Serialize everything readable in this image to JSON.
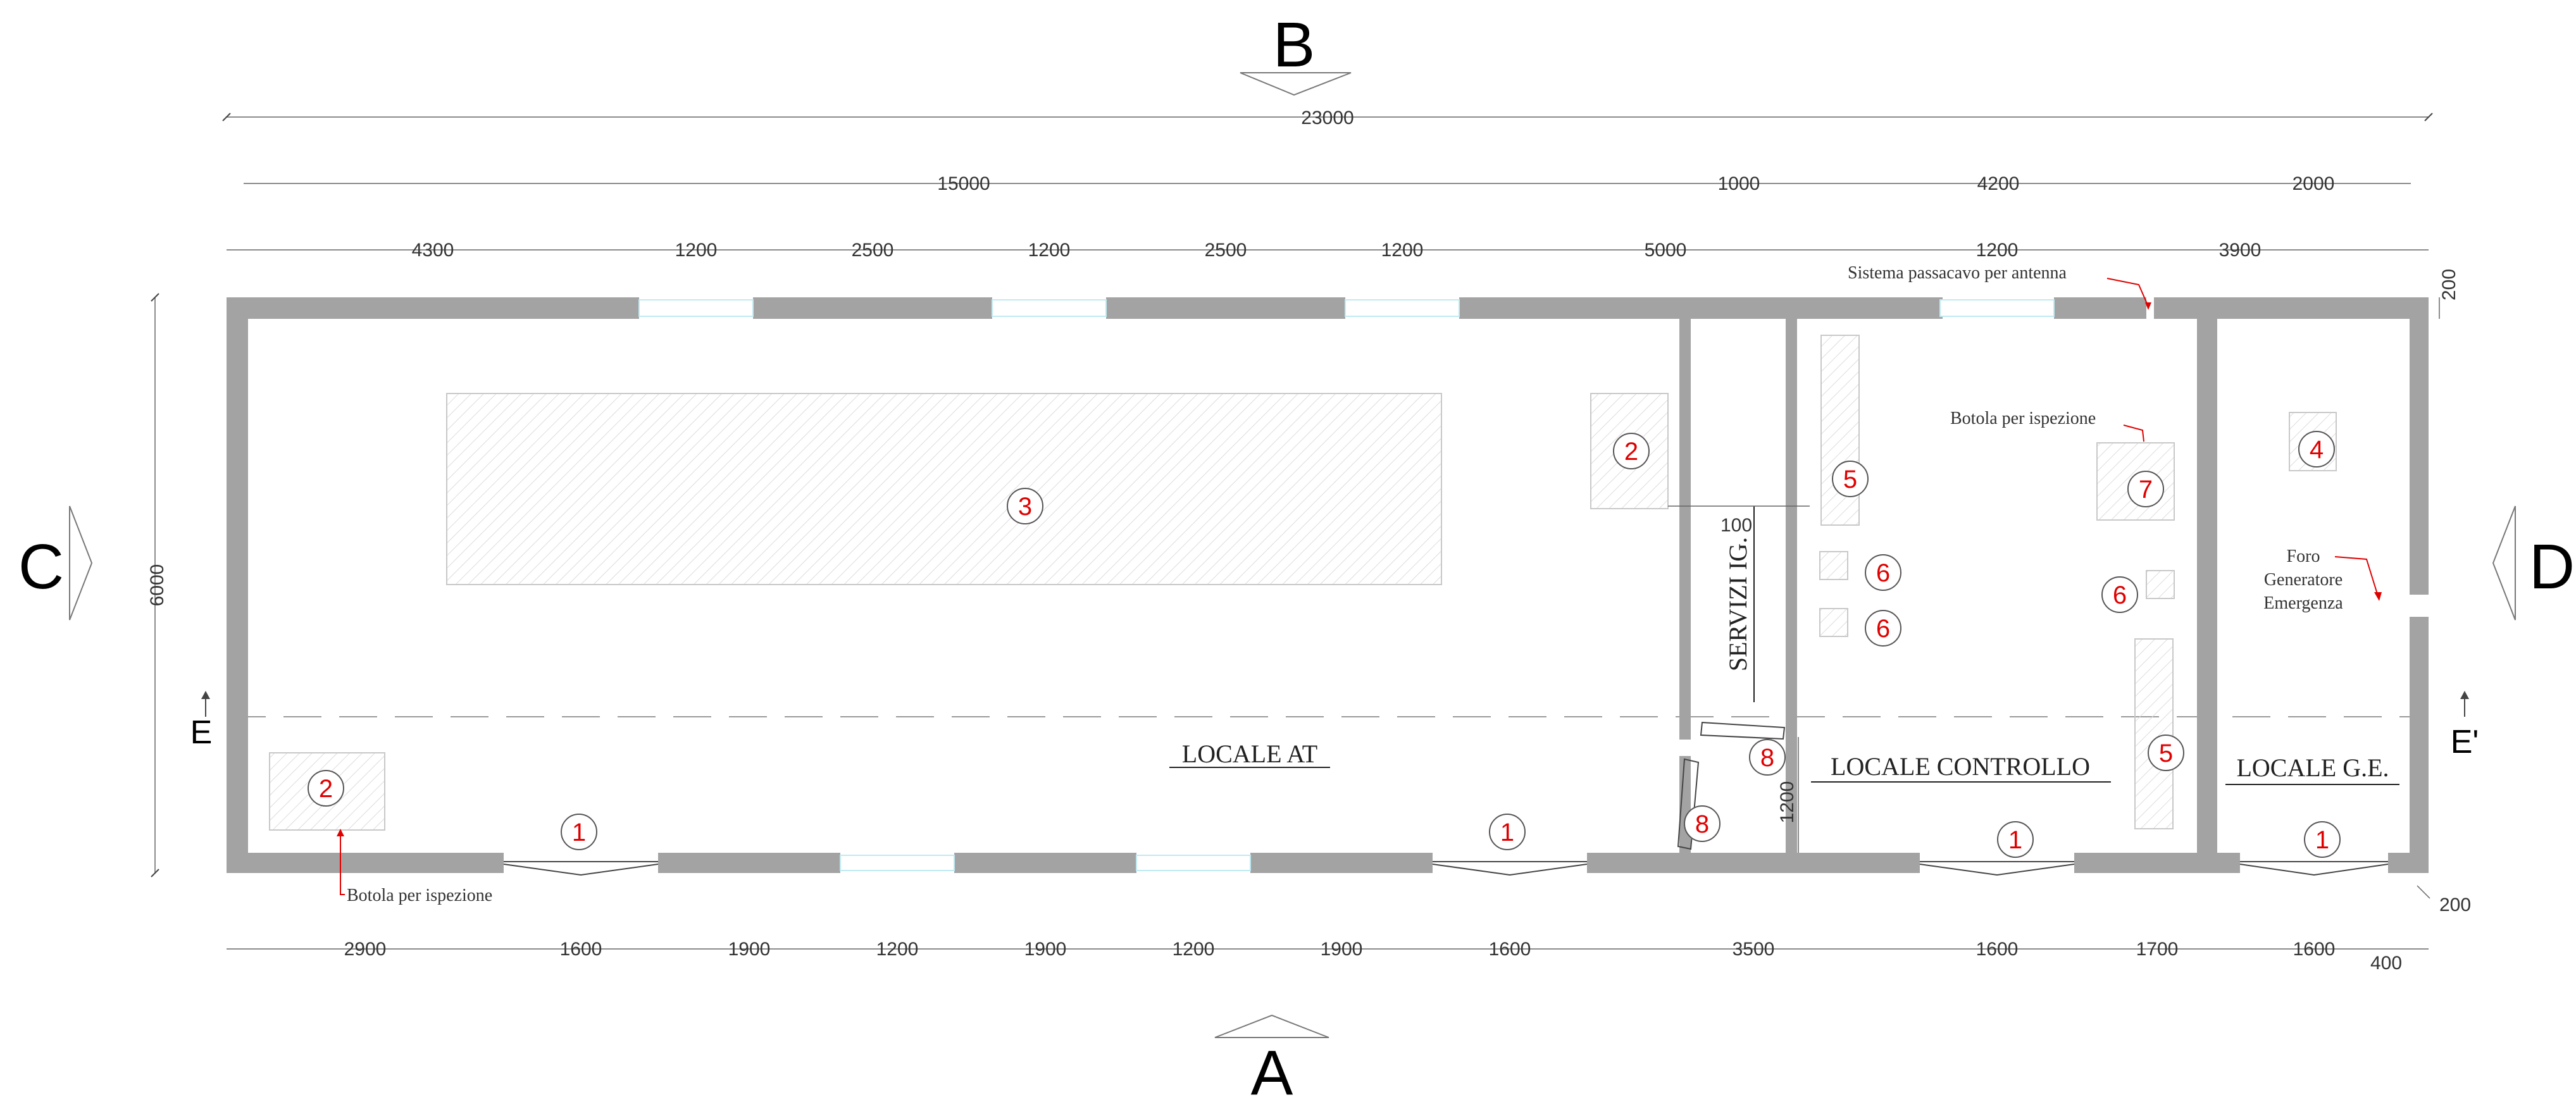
{
  "view_markers": {
    "top": "B",
    "bottom": "A",
    "left": "C",
    "right": "D"
  },
  "section_markers": {
    "left": "E",
    "right": "E'"
  },
  "dimensions": {
    "overall_width": "23000",
    "overall_height": "6000",
    "upper_groups": [
      "15000",
      "1000",
      "4200",
      "2000"
    ],
    "top_openings": [
      "4300",
      "1200",
      "2500",
      "1200",
      "2500",
      "1200",
      "5000",
      "1200",
      "3900"
    ],
    "bottom_openings": [
      "2900",
      "1600",
      "1900",
      "1200",
      "1900",
      "1200",
      "1900",
      "1600",
      "3500",
      "1600",
      "1700",
      "1600"
    ],
    "bottom_extra": "400",
    "wall_thickness_top": "200",
    "wall_thickness_bottom": "200",
    "door_width_services": "1200",
    "partition_gap": "100"
  },
  "rooms": {
    "locale_at": "LOCALE AT",
    "servizi": "SERVIZI IG.",
    "locale_controllo": "LOCALE CONTROLLO",
    "locale_ge": "LOCALE G.E."
  },
  "notes": {
    "cable_passage": "Sistema passacavo per antenna",
    "inspection_hatch_top": "Botola per ispezione",
    "inspection_hatch_bottom": "Botola per ispezione",
    "generator_hole_1": "Foro",
    "generator_hole_2": "Generatore",
    "generator_hole_3": "Emergenza"
  },
  "markers": {
    "m1": "1",
    "m2": "2",
    "m3": "3",
    "m4": "4",
    "m5": "5",
    "m6": "6",
    "m7": "7",
    "m8": "8"
  },
  "colors": {
    "wall": "#a3a3a3",
    "marker": "#e00000",
    "window": "#bfeaf2",
    "hatch": "#c8c8c8"
  }
}
